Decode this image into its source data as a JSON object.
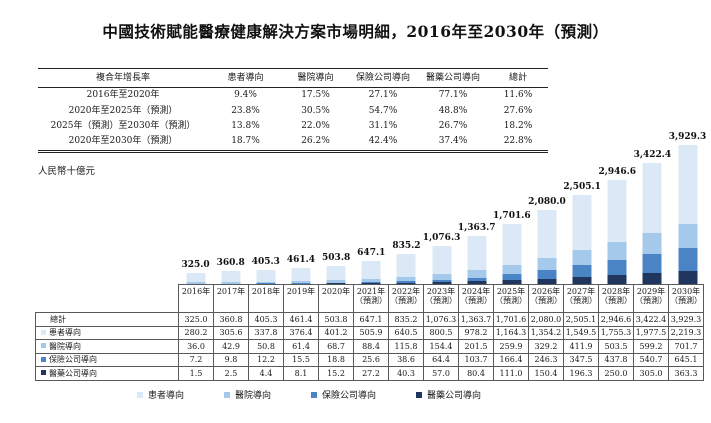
{
  "title": "中國技術賦能醫療健康解決方案市場明細，2016年至2030年（預測）",
  "unit_label": "人民幣十億元",
  "cagr_table": {
    "headers": [
      "複合年增長率",
      "患者導向",
      "醫院導向",
      "保險公司導向",
      "醫藥公司導向",
      "總計"
    ],
    "rows": [
      {
        "period": "2016年至2020年",
        "values": [
          "9.4%",
          "17.5%",
          "27.1%",
          "77.1%",
          "11.6%"
        ]
      },
      {
        "period": "2020年至2025年（預測）",
        "values": [
          "23.8%",
          "30.5%",
          "54.7%",
          "48.8%",
          "27.6%"
        ]
      },
      {
        "period": "2025年（預測）至2030年（預測）",
        "values": [
          "13.8%",
          "22.0%",
          "31.1%",
          "26.7%",
          "18.2%"
        ]
      },
      {
        "period": "2020年至2030年（預測）",
        "values": [
          "18.7%",
          "26.2%",
          "42.4%",
          "37.4%",
          "22.8%"
        ]
      }
    ]
  },
  "chart_data": {
    "type": "bar",
    "stacked": true,
    "title": "中國技術賦能醫療健康解決方案市場明細，2016年至2030年（預測）",
    "ylabel": "人民幣十億元",
    "ylim": [
      0,
      3929.3
    ],
    "grid": false,
    "legend_position": "bottom",
    "categories": [
      {
        "line1": "2016年",
        "line2": ""
      },
      {
        "line1": "2017年",
        "line2": ""
      },
      {
        "line1": "2018年",
        "line2": ""
      },
      {
        "line1": "2019年",
        "line2": ""
      },
      {
        "line1": "2020年",
        "line2": ""
      },
      {
        "line1": "2021年",
        "line2": "（預測）"
      },
      {
        "line1": "2022年",
        "line2": "（預測）"
      },
      {
        "line1": "2023年",
        "line2": "（預測）"
      },
      {
        "line1": "2024年",
        "line2": "（預測）"
      },
      {
        "line1": "2025年",
        "line2": "（預測）"
      },
      {
        "line1": "2026年",
        "line2": "（預測）"
      },
      {
        "line1": "2027年",
        "line2": "（預測）"
      },
      {
        "line1": "2028年",
        "line2": "（預測）"
      },
      {
        "line1": "2029年",
        "line2": "（預測）"
      },
      {
        "line1": "2030年",
        "line2": "（預測）"
      }
    ],
    "totals": [
      325.0,
      360.8,
      405.3,
      461.4,
      503.8,
      647.1,
      835.2,
      1076.3,
      1363.7,
      1701.6,
      2080.0,
      2505.1,
      2946.6,
      3422.4,
      3929.3
    ],
    "series": [
      {
        "name": "患者導向",
        "color": "#dbe8f6",
        "values": [
          280.2,
          305.6,
          337.8,
          376.4,
          401.2,
          505.9,
          640.5,
          800.5,
          978.2,
          1164.3,
          1354.2,
          1549.5,
          1755.3,
          1977.5,
          2219.3
        ]
      },
      {
        "name": "醫院導向",
        "color": "#a4c9ea",
        "values": [
          36.0,
          42.9,
          50.8,
          61.4,
          68.7,
          88.4,
          115.8,
          154.4,
          201.5,
          259.9,
          329.2,
          411.9,
          503.5,
          599.2,
          701.7
        ]
      },
      {
        "name": "保險公司導向",
        "color": "#4a84c4",
        "values": [
          7.2,
          9.8,
          12.2,
          15.5,
          18.8,
          25.6,
          38.6,
          64.4,
          103.7,
          166.4,
          246.3,
          347.5,
          437.8,
          540.7,
          645.1
        ]
      },
      {
        "name": "醫藥公司導向",
        "color": "#21365f",
        "values": [
          1.5,
          2.5,
          4.4,
          8.1,
          15.2,
          27.2,
          40.3,
          57.0,
          80.4,
          111.0,
          150.4,
          196.3,
          250.0,
          305.0,
          363.3
        ]
      }
    ]
  },
  "data_table": {
    "total_row_label": "總計"
  }
}
